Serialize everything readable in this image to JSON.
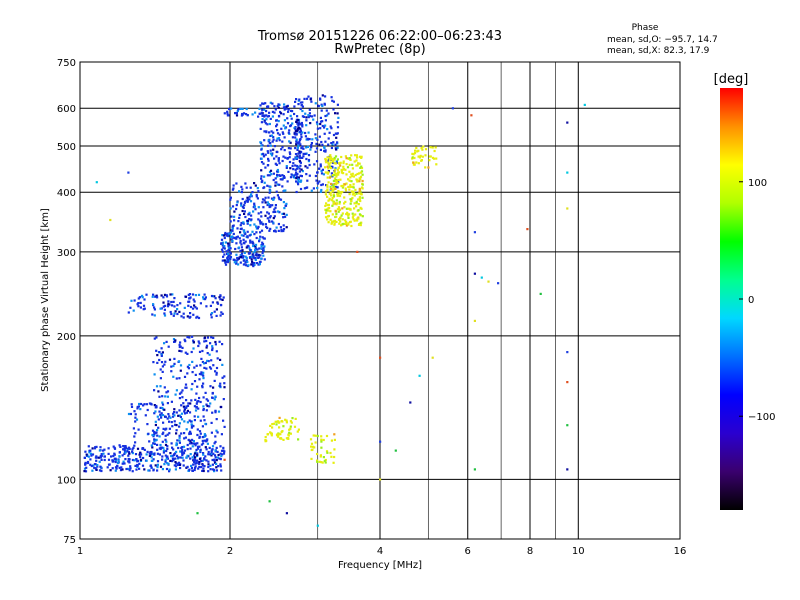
{
  "chart_data": {
    "type": "scatter",
    "title": "Tromsø 20151226 06:22:00–06:23:43",
    "subtitle": "RwPretec (8p)",
    "xlabel": "Frequency [MHz]",
    "ylabel": "Stationary phase Virtual Height [km]",
    "x_scale": "log",
    "y_scale": "log",
    "xlim": [
      1,
      16
    ],
    "ylim": [
      75,
      750
    ],
    "x_ticks": [
      1,
      2,
      4,
      6,
      8,
      10,
      16
    ],
    "y_ticks": [
      75,
      100,
      200,
      300,
      400,
      500,
      600,
      750
    ],
    "x_major_grid": [
      2,
      4,
      6,
      8,
      10
    ],
    "x_minor_grid": [
      3,
      5,
      7,
      9
    ],
    "y_grid": [
      100,
      200,
      300,
      400,
      500,
      600
    ],
    "stats": {
      "heading": "Phase",
      "line1": "mean, sd,O: −95.7, 14.7",
      "line2": "mean, sd,X:  82.3, 17.9"
    },
    "colorbar": {
      "label": "[deg]",
      "range": [
        -180,
        180
      ],
      "ticks": [
        100,
        0,
        -100
      ],
      "stops": [
        "#000000",
        "#3a006e",
        "#2a00d0",
        "#0000ff",
        "#0070ff",
        "#00d8ff",
        "#00ff90",
        "#00ff00",
        "#b0ff00",
        "#ffff00",
        "#ff9000",
        "#ff0000"
      ]
    },
    "series": [
      {
        "mode": "O",
        "color": "#1530e0",
        "clusters": [
          {
            "x": [
              1.02,
              1.95
            ],
            "y": [
              104,
              118
            ],
            "n": 420
          },
          {
            "x": [
              1.4,
              1.95
            ],
            "y": [
              118,
              200
            ],
            "n": 300
          },
          {
            "x": [
              1.25,
              1.8
            ],
            "y": [
              118,
              145
            ],
            "n": 120
          },
          {
            "x": [
              1.25,
              1.95
            ],
            "y": [
              218,
              245
            ],
            "n": 130
          },
          {
            "x": [
              1.92,
              2.35
            ],
            "y": [
              280,
              330
            ],
            "n": 220
          },
          {
            "x": [
              2.0,
              2.6
            ],
            "y": [
              330,
              420
            ],
            "n": 200
          },
          {
            "x": [
              2.3,
              2.8
            ],
            "y": [
              420,
              620
            ],
            "n": 260
          },
          {
            "x": [
              2.7,
              3.3
            ],
            "y": [
              400,
              640
            ],
            "n": 240
          },
          {
            "x": [
              1.95,
              2.35
            ],
            "y": [
              575,
              600
            ],
            "n": 30
          }
        ]
      },
      {
        "mode": "X",
        "color": "#e6ee10",
        "clusters": [
          {
            "x": [
              3.1,
              3.7
            ],
            "y": [
              340,
              480
            ],
            "n": 340
          },
          {
            "x": [
              2.35,
              2.75
            ],
            "y": [
              120,
              135
            ],
            "n": 60
          },
          {
            "x": [
              2.9,
              3.25
            ],
            "y": [
              108,
              125
            ],
            "n": 40
          },
          {
            "x": [
              4.6,
              5.2
            ],
            "y": [
              450,
              500
            ],
            "n": 40
          }
        ]
      },
      {
        "mode": "sparse",
        "color": "#00c8e0",
        "points": [
          [
            1.08,
            420
          ],
          [
            1.15,
            350
          ],
          [
            1.25,
            440
          ],
          [
            1.95,
            110
          ],
          [
            2.4,
            90
          ],
          [
            2.6,
            85
          ],
          [
            3.0,
            80
          ],
          [
            4.0,
            100
          ],
          [
            4.0,
            120
          ],
          [
            4.0,
            180
          ],
          [
            4.3,
            115
          ],
          [
            4.6,
            145
          ],
          [
            4.8,
            165
          ],
          [
            5.1,
            180
          ],
          [
            5.6,
            600
          ],
          [
            6.1,
            580
          ],
          [
            6.2,
            105
          ],
          [
            6.2,
            270
          ],
          [
            6.4,
            265
          ],
          [
            6.6,
            260
          ],
          [
            6.9,
            258
          ],
          [
            7.9,
            335
          ],
          [
            8.4,
            245
          ],
          [
            9.5,
            560
          ],
          [
            9.5,
            440
          ],
          [
            9.5,
            370
          ],
          [
            9.5,
            185
          ],
          [
            9.5,
            160
          ],
          [
            9.5,
            130
          ],
          [
            9.5,
            105
          ],
          [
            10.3,
            610
          ],
          [
            6.2,
            215
          ],
          [
            6.2,
            330
          ],
          [
            3.6,
            300
          ],
          [
            1.72,
            85
          ]
        ]
      }
    ]
  }
}
